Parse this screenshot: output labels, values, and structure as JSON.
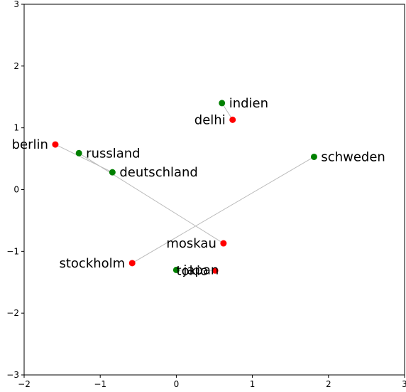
{
  "chart_data": {
    "type": "scatter",
    "title": "",
    "xlabel": "",
    "ylabel": "",
    "xlim": [
      -2,
      3
    ],
    "ylim": [
      -3,
      3
    ],
    "xticks": [
      -2,
      -1,
      0,
      1,
      2,
      3
    ],
    "yticks": [
      -3,
      -2,
      -1,
      0,
      1,
      2,
      3
    ],
    "grid": false,
    "colors": {
      "country": "#008000",
      "capital": "#ff0000",
      "link": "#bbbbbb"
    },
    "series": [
      {
        "points": [
          {
            "label": "indien",
            "x": 0.6,
            "y": 1.4
          },
          {
            "label": "russland",
            "x": -1.28,
            "y": 0.59
          },
          {
            "label": "deutschland",
            "x": -0.84,
            "y": 0.28
          },
          {
            "label": "schweden",
            "x": 1.81,
            "y": 0.53
          },
          {
            "label": "japan",
            "x": 0.0,
            "y": -1.3
          }
        ]
      },
      {
        "points": [
          {
            "label": "delhi",
            "x": 0.74,
            "y": 1.13
          },
          {
            "label": "berlin",
            "x": -1.59,
            "y": 0.73
          },
          {
            "label": "moskau",
            "x": 0.62,
            "y": -0.87
          },
          {
            "label": "stockholm",
            "x": -0.58,
            "y": -1.19
          },
          {
            "label": "tokio",
            "x": 0.51,
            "y": -1.31
          }
        ]
      }
    ],
    "links": [
      {
        "from": "indien",
        "to": "delhi"
      },
      {
        "from": "russland",
        "to": "moskau"
      },
      {
        "from": "deutschland",
        "to": "berlin"
      },
      {
        "from": "schweden",
        "to": "stockholm"
      },
      {
        "from": "japan",
        "to": "tokio"
      }
    ]
  }
}
